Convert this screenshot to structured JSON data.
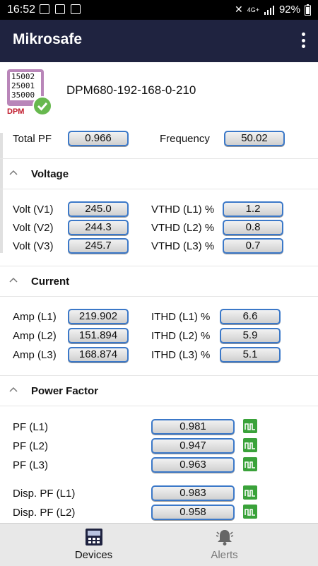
{
  "status": {
    "time": "16:52",
    "battery": "92%",
    "network": "4G+"
  },
  "app": {
    "title": "Mikrosafe"
  },
  "device": {
    "name": "DPM680-192-168-0-210",
    "icon_label": "DPM",
    "screen_lines": [
      "15002",
      "25001",
      "35000"
    ]
  },
  "summary": {
    "pf_label": "Total PF",
    "pf_value": "0.966",
    "freq_label": "Frequency",
    "freq_value": "50.02"
  },
  "voltage": {
    "title": "Voltage",
    "rows": [
      {
        "label": "Volt (V1)",
        "value": "245.0",
        "thd_label": "VTHD (L1) %",
        "thd_value": "1.2"
      },
      {
        "label": "Volt (V2)",
        "value": "244.3",
        "thd_label": "VTHD (L2) %",
        "thd_value": "0.8"
      },
      {
        "label": "Volt (V3)",
        "value": "245.7",
        "thd_label": "VTHD (L3) %",
        "thd_value": "0.7"
      }
    ]
  },
  "current": {
    "title": "Current",
    "rows": [
      {
        "label": "Amp (L1)",
        "value": "219.902",
        "thd_label": "ITHD (L1) %",
        "thd_value": "6.6"
      },
      {
        "label": "Amp (L2)",
        "value": "151.894",
        "thd_label": "ITHD (L2) %",
        "thd_value": "5.9"
      },
      {
        "label": "Amp (L3)",
        "value": "168.874",
        "thd_label": "ITHD (L3) %",
        "thd_value": "5.1"
      }
    ]
  },
  "power_factor": {
    "title": "Power Factor",
    "rows": [
      {
        "label": "PF (L1)",
        "value": "0.981"
      },
      {
        "label": "PF (L2)",
        "value": "0.947"
      },
      {
        "label": "PF (L3)",
        "value": "0.963"
      },
      {
        "label": "Disp. PF (L1)",
        "value": "0.983"
      },
      {
        "label": "Disp. PF (L2)",
        "value": "0.958"
      }
    ]
  },
  "nav": {
    "devices": "Devices",
    "alerts": "Alerts"
  },
  "colors": {
    "appbar": "#1f2340",
    "field_border": "#3b78c8",
    "wave_icon": "#3aa23a",
    "check": "#67b84e",
    "device_bg": "#b986b9"
  }
}
